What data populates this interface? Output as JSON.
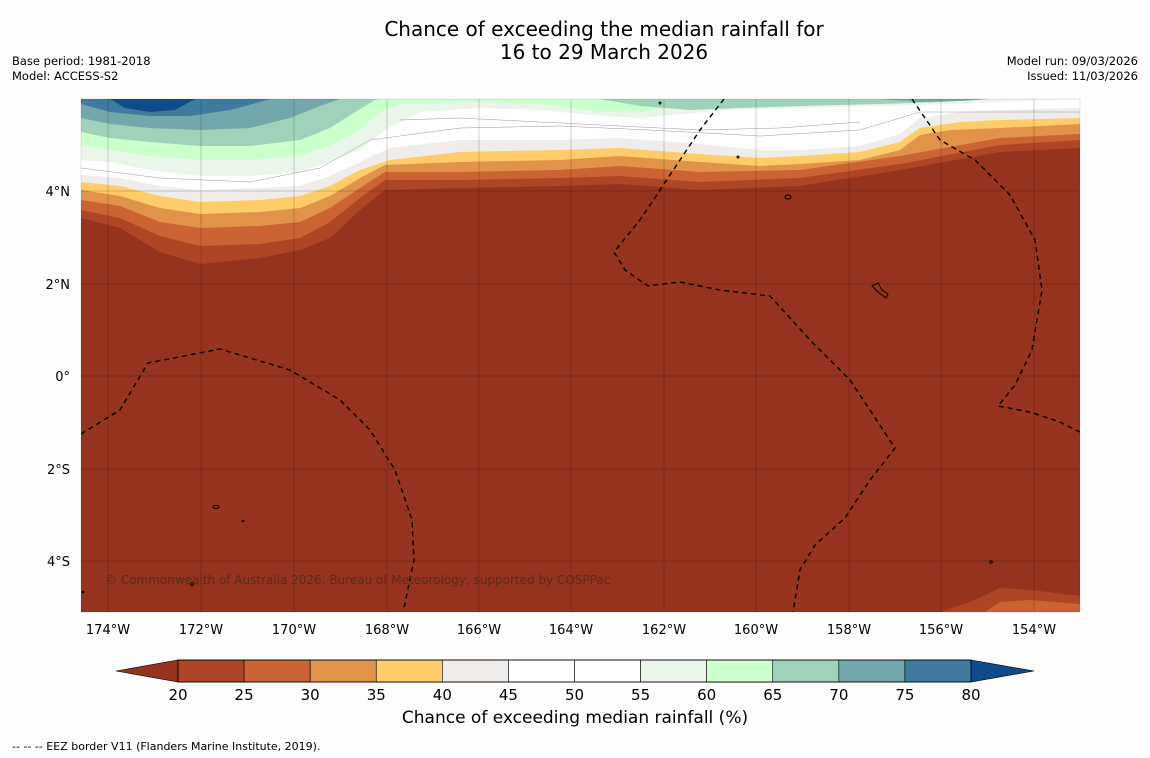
{
  "header": {
    "title_line1": "Chance of exceeding the median rainfall for",
    "title_line2": "16 to 29 March 2026",
    "base_period": "Base period: 1981-2018",
    "model": "Model: ACCESS-S2",
    "model_run": "Model run: 09/03/2026",
    "issued": "Issued: 11/03/2026"
  },
  "map": {
    "lat_labels": [
      "4°N",
      "2°N",
      "0°",
      "2°S",
      "4°S"
    ],
    "lon_labels": [
      "174°W",
      "172°W",
      "170°W",
      "168°W",
      "166°W",
      "164°W",
      "162°W",
      "160°W",
      "158°W",
      "156°W",
      "154°W"
    ],
    "copyright": "© Commonwealth of Australia 2026, Bureau of Meteorology, supported by COSPPac"
  },
  "colorbar": {
    "title": "Chance of exceeding median rainfall (%)",
    "ticks": [
      "20",
      "25",
      "30",
      "35",
      "40",
      "45",
      "50",
      "55",
      "60",
      "65",
      "70",
      "75",
      "80"
    ],
    "colors": [
      "#ae4625",
      "#cb6332",
      "#e09349",
      "#fecd6a",
      "#f0ece9",
      "#ffffff",
      "#ffffff",
      "#ebf6ea",
      "#cbffcc",
      "#9ed2bb",
      "#72a8ab",
      "#3f7a9f"
    ],
    "under_color": "#96331f",
    "over_color": "#0f4a8a"
  },
  "footer": {
    "legend": "--  --  -- EEZ border V11 (Flanders Marine Institute, 2019)."
  }
}
